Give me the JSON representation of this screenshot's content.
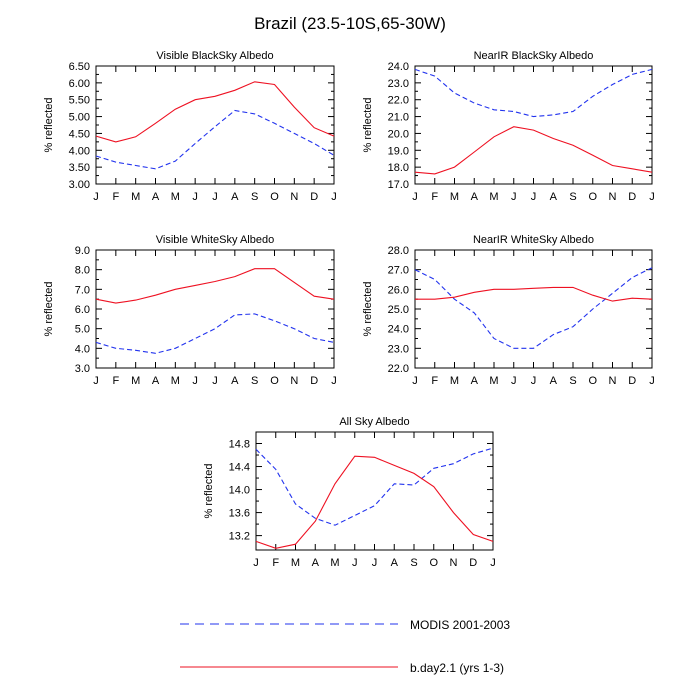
{
  "title": "Brazil (23.5-10S,65-30W)",
  "legend": {
    "items": [
      {
        "label": "MODIS 2001-2003",
        "color": "#2233ee",
        "style": "dashed"
      },
      {
        "label": "b.day2.1 (yrs 1-3)",
        "color": "#ee1122",
        "style": "solid"
      }
    ]
  },
  "chart_data": [
    {
      "type": "line",
      "title": "Visible BlackSky Albedo",
      "xlabel": "",
      "ylabel": "% reflected",
      "categories": [
        "J",
        "F",
        "M",
        "A",
        "M",
        "J",
        "J",
        "A",
        "S",
        "O",
        "N",
        "D",
        "J"
      ],
      "ylim": [
        3.0,
        6.5
      ],
      "yticks": [
        "3.00",
        "3.50",
        "4.00",
        "4.50",
        "5.00",
        "5.50",
        "6.00",
        "6.50"
      ],
      "series": [
        {
          "name": "MODIS 2001-2003",
          "values": [
            3.83,
            3.65,
            3.55,
            3.45,
            3.68,
            4.2,
            4.7,
            5.18,
            5.08,
            4.8,
            4.5,
            4.2,
            3.85
          ]
        },
        {
          "name": "b.day2.1 (yrs 1-3)",
          "values": [
            4.42,
            4.25,
            4.4,
            4.8,
            5.22,
            5.5,
            5.6,
            5.78,
            6.03,
            5.95,
            5.28,
            4.67,
            4.42
          ]
        }
      ]
    },
    {
      "type": "line",
      "title": "NearIR BlackSky Albedo",
      "xlabel": "",
      "ylabel": "% reflected",
      "categories": [
        "J",
        "F",
        "M",
        "A",
        "M",
        "J",
        "J",
        "A",
        "S",
        "O",
        "N",
        "D",
        "J"
      ],
      "ylim": [
        17.0,
        24.0
      ],
      "yticks": [
        "17.0",
        "18.0",
        "19.0",
        "20.0",
        "21.0",
        "22.0",
        "23.0",
        "24.0"
      ],
      "series": [
        {
          "name": "MODIS 2001-2003",
          "values": [
            23.8,
            23.4,
            22.4,
            21.8,
            21.4,
            21.3,
            21.0,
            21.1,
            21.3,
            22.2,
            22.9,
            23.5,
            23.8
          ]
        },
        {
          "name": "b.day2.1 (yrs 1-3)",
          "values": [
            17.7,
            17.6,
            18.0,
            18.9,
            19.8,
            20.4,
            20.2,
            19.7,
            19.3,
            18.7,
            18.1,
            17.9,
            17.7
          ]
        }
      ]
    },
    {
      "type": "line",
      "title": "Visible WhiteSky Albedo",
      "xlabel": "",
      "ylabel": "% reflected",
      "categories": [
        "J",
        "F",
        "M",
        "A",
        "M",
        "J",
        "J",
        "A",
        "S",
        "O",
        "N",
        "D",
        "J"
      ],
      "ylim": [
        3.0,
        9.0
      ],
      "yticks": [
        "3.0",
        "4.0",
        "5.0",
        "6.0",
        "7.0",
        "8.0",
        "9.0"
      ],
      "series": [
        {
          "name": "MODIS 2001-2003",
          "values": [
            4.3,
            4.0,
            3.9,
            3.75,
            4.0,
            4.5,
            5.0,
            5.7,
            5.75,
            5.4,
            5.0,
            4.5,
            4.3
          ]
        },
        {
          "name": "b.day2.1 (yrs 1-3)",
          "values": [
            6.5,
            6.3,
            6.45,
            6.7,
            7.0,
            7.2,
            7.4,
            7.65,
            8.05,
            8.05,
            7.35,
            6.65,
            6.5
          ]
        }
      ]
    },
    {
      "type": "line",
      "title": "NearIR WhiteSky Albedo",
      "xlabel": "",
      "ylabel": "% reflected",
      "categories": [
        "J",
        "F",
        "M",
        "A",
        "M",
        "J",
        "J",
        "A",
        "S",
        "O",
        "N",
        "D",
        "J"
      ],
      "ylim": [
        22.0,
        28.0
      ],
      "yticks": [
        "22.0",
        "23.0",
        "24.0",
        "25.0",
        "26.0",
        "27.0",
        "28.0"
      ],
      "series": [
        {
          "name": "MODIS 2001-2003",
          "values": [
            27.0,
            26.5,
            25.5,
            24.8,
            23.5,
            23.0,
            23.0,
            23.7,
            24.1,
            25.0,
            25.8,
            26.6,
            27.1
          ]
        },
        {
          "name": "b.day2.1 (yrs 1-3)",
          "values": [
            25.5,
            25.5,
            25.6,
            25.85,
            26.0,
            26.0,
            26.05,
            26.1,
            26.1,
            25.7,
            25.4,
            25.55,
            25.5
          ]
        }
      ]
    },
    {
      "type": "line",
      "title": "All Sky Albedo",
      "xlabel": "",
      "ylabel": "% reflected",
      "categories": [
        "J",
        "F",
        "M",
        "A",
        "M",
        "J",
        "J",
        "A",
        "S",
        "O",
        "N",
        "D",
        "J"
      ],
      "ylim": [
        12.95,
        15.0
      ],
      "yticks": [
        "13.2",
        "13.6",
        "14.0",
        "14.4",
        "14.8"
      ],
      "series": [
        {
          "name": "MODIS 2001-2003",
          "values": [
            14.7,
            14.35,
            13.75,
            13.5,
            13.38,
            13.55,
            13.72,
            14.1,
            14.08,
            14.37,
            14.45,
            14.62,
            14.72
          ]
        },
        {
          "name": "b.day2.1 (yrs 1-3)",
          "values": [
            13.1,
            12.98,
            13.05,
            13.45,
            14.1,
            14.58,
            14.56,
            14.42,
            14.28,
            14.05,
            13.6,
            13.22,
            13.1
          ]
        }
      ]
    }
  ]
}
